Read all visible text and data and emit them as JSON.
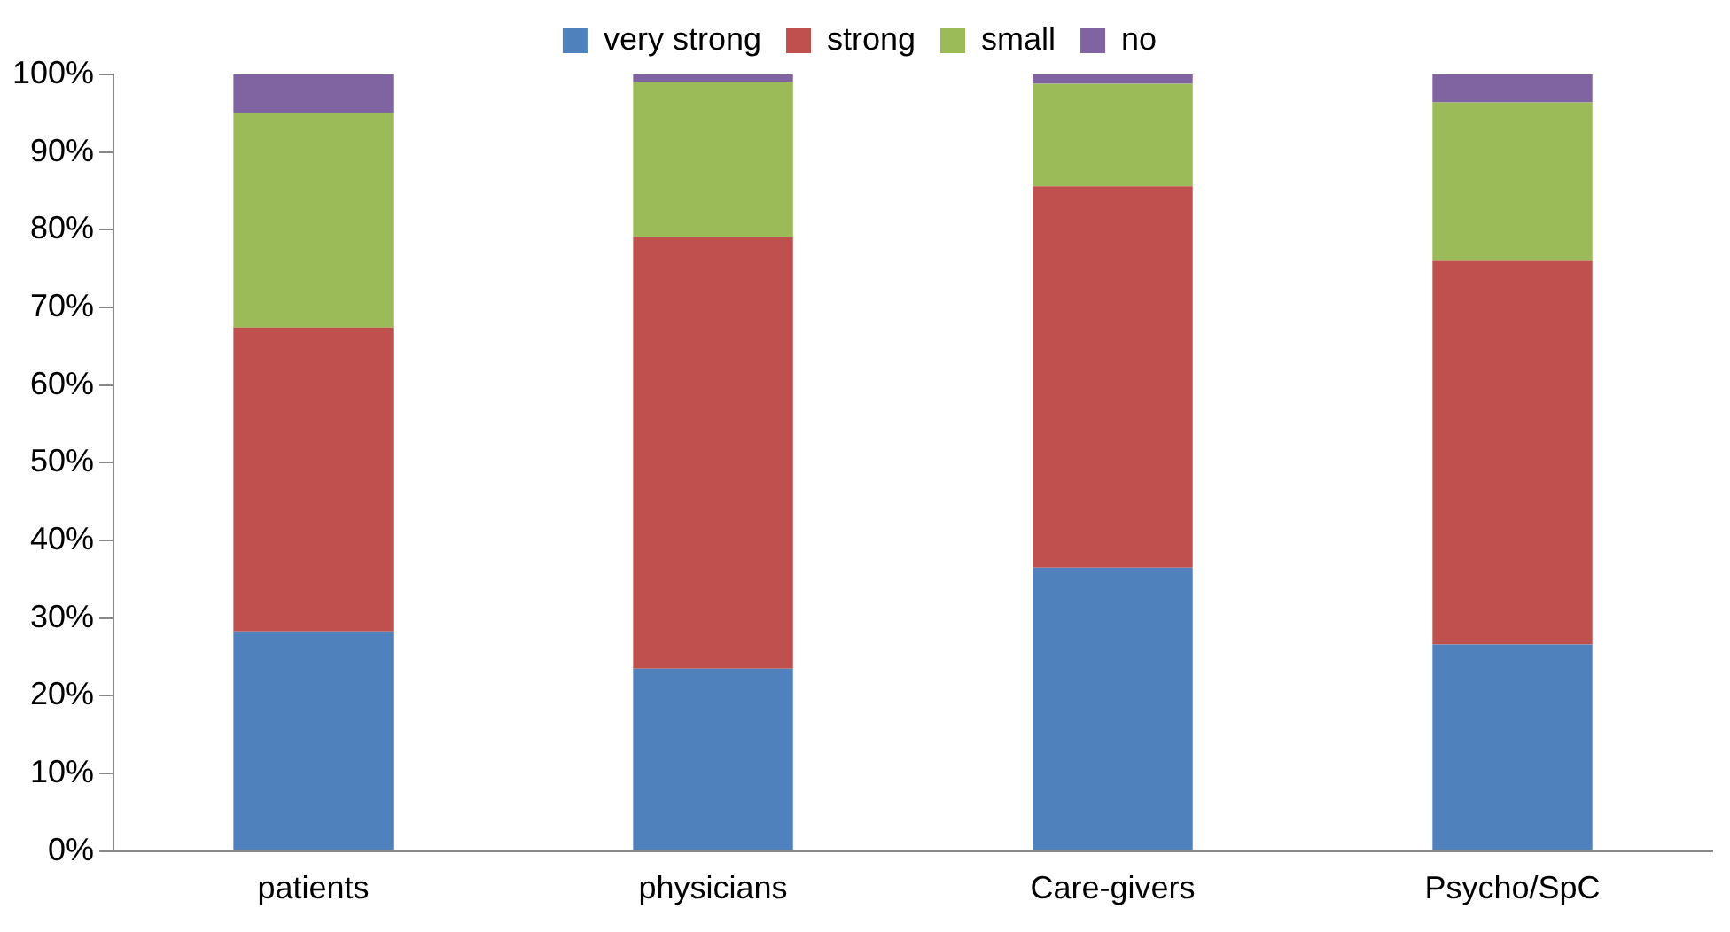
{
  "chart_data": {
    "type": "bar",
    "stacked": true,
    "legend": "top",
    "grid": false,
    "categories": [
      "patients",
      "physicians",
      "Care-givers",
      "Psycho/SpC"
    ],
    "series": [
      {
        "name": "very strong",
        "color": "#4f81bd",
        "values": [
          28.3,
          23.5,
          36.5,
          26.6
        ]
      },
      {
        "name": "strong",
        "color": "#c0504d",
        "values": [
          39.1,
          55.6,
          49.1,
          49.4
        ]
      },
      {
        "name": "small",
        "color": "#9bbb59",
        "values": [
          27.6,
          19.9,
          13.2,
          20.4
        ]
      },
      {
        "name": "no",
        "color": "#8064a2",
        "values": [
          5.0,
          1.0,
          1.2,
          3.6
        ]
      }
    ],
    "ylim": [
      0,
      100
    ],
    "yticks": [
      {
        "value": 0,
        "label": "0%"
      },
      {
        "value": 10,
        "label": "10%"
      },
      {
        "value": 20,
        "label": "20%"
      },
      {
        "value": 30,
        "label": "30%"
      },
      {
        "value": 40,
        "label": "40%"
      },
      {
        "value": 50,
        "label": "50%"
      },
      {
        "value": 60,
        "label": "60%"
      },
      {
        "value": 70,
        "label": "70%"
      },
      {
        "value": 80,
        "label": "80%"
      },
      {
        "value": 90,
        "label": "90%"
      },
      {
        "value": 100,
        "label": "100%"
      }
    ]
  }
}
